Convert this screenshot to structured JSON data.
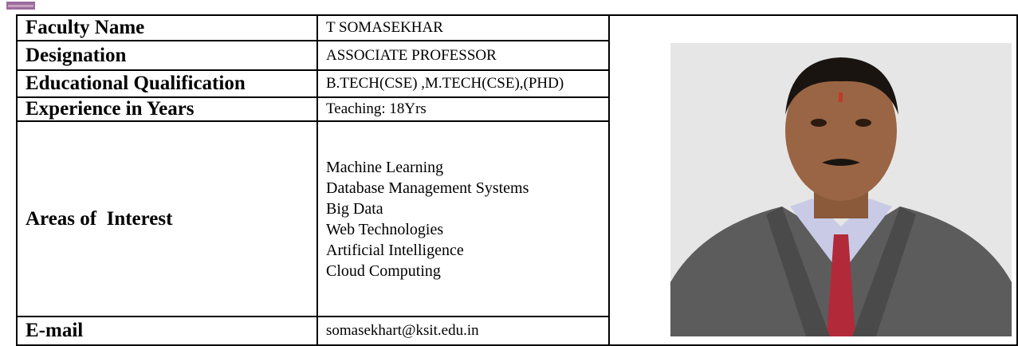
{
  "table": {
    "rows": [
      {
        "label": "Faculty Name",
        "value": "T SOMASEKHAR"
      },
      {
        "label": "Designation",
        "value": "ASSOCIATE PROFESSOR"
      },
      {
        "label": "Educational Qualification",
        "value": "B.TECH(CSE) ,M.TECH(CSE),(PHD)"
      },
      {
        "label": "Experience in Years",
        "value": "Teaching: 18Yrs"
      },
      {
        "label": "Areas of  Interest",
        "values": [
          "Machine Learning",
          "Database Management Systems",
          "Big Data",
          "Web Technologies",
          "Artificial Intelligence",
          "Cloud Computing"
        ]
      },
      {
        "label": "E-mail",
        "value": "somasekhart@ksit.edu.in"
      }
    ]
  }
}
